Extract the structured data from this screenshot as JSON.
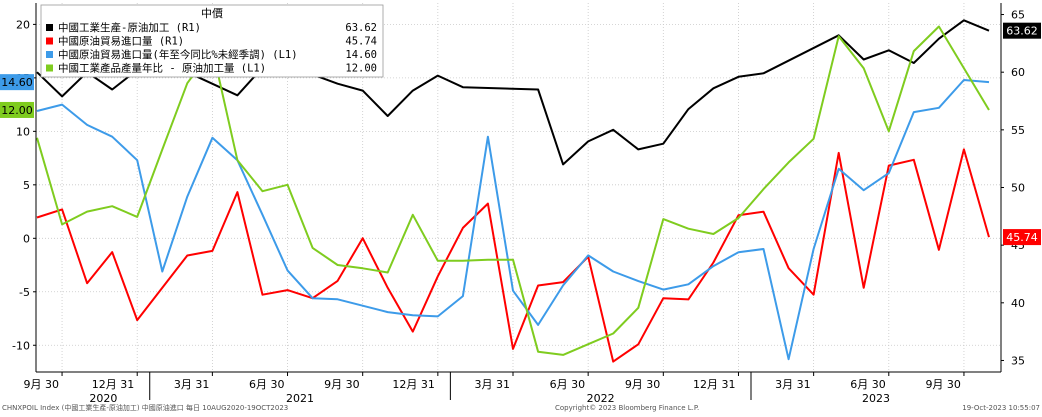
{
  "chart_data": {
    "type": "line",
    "legend": {
      "header": "中價",
      "placement": "top-left",
      "entries": [
        {
          "label": "中國工業生產-原油加工 (R1)",
          "value": "63.62",
          "color": "#000000"
        },
        {
          "label": "中國原油貿易進口量 (R1)",
          "value": "45.74",
          "color": "#ff0000"
        },
        {
          "label": "中國原油貿易進口量(年至今同比%未經季調) (L1)",
          "value": "14.60",
          "color": "#3d9be9"
        },
        {
          "label": "中國工業產品產量年比 - 原油加工量 (L1)",
          "value": "12.00",
          "color": "#7fcc1f"
        }
      ]
    },
    "x": [
      "2020-08",
      "2020-09",
      "2020-10",
      "2020-11",
      "2020-12",
      "2021-01",
      "2021-02",
      "2021-03",
      "2021-04",
      "2021-05",
      "2021-06",
      "2021-07",
      "2021-08",
      "2021-09",
      "2021-10",
      "2021-11",
      "2021-12",
      "2022-01",
      "2022-02",
      "2022-03",
      "2022-04",
      "2022-05",
      "2022-06",
      "2022-07",
      "2022-08",
      "2022-09",
      "2022-10",
      "2022-11",
      "2022-12",
      "2023-01",
      "2023-02",
      "2023-03",
      "2023-04",
      "2023-05",
      "2023-06",
      "2023-07",
      "2023-08",
      "2023-09",
      "2023-10"
    ],
    "x_tick_labels": [
      "9月 30",
      "12月 31",
      "3月 31",
      "6月 30",
      "9月 30",
      "12月 31",
      "3月 31",
      "6月 30",
      "9月 30",
      "12月 31",
      "3月 31",
      "6月 30",
      "9月 30"
    ],
    "x_year_labels": [
      "2020",
      "2021",
      "2022",
      "2023"
    ],
    "left_axis": {
      "ylim": [
        -12.5,
        22
      ],
      "ticks": [
        "20",
        "15",
        "10",
        "5",
        "0",
        "-5",
        "-10"
      ]
    },
    "right_axis": {
      "ylim": [
        34,
        66
      ],
      "ticks": [
        "65",
        "60",
        "55",
        "50",
        "45",
        "40",
        "35"
      ]
    },
    "grid": true,
    "series": [
      {
        "name": "中國工業生產-原油加工 (R1)",
        "axis": "right",
        "color": "#000000",
        "values": [
          60.0,
          57.9,
          60.0,
          58.5,
          60.2,
          null,
          60.0,
          null,
          58.0,
          60.4,
          60.6,
          null,
          59.0,
          58.4,
          56.2,
          58.4,
          59.7,
          58.7,
          null,
          null,
          58.5,
          52.0,
          54.0,
          55.0,
          53.3,
          53.8,
          56.8,
          58.6,
          59.6,
          59.9,
          null,
          null,
          63.2,
          61.1,
          61.9,
          60.8,
          62.9,
          64.5,
          63.6
        ]
      },
      {
        "name": "中國原油貿易進口量 (R1)",
        "axis": "right",
        "color": "#ff0000",
        "values": [
          47.4,
          48.1,
          41.7,
          44.4,
          38.5,
          null,
          44.1,
          44.5,
          49.6,
          40.7,
          41.1,
          40.4,
          41.9,
          45.6,
          41.3,
          37.5,
          42.3,
          46.5,
          48.6,
          36.0,
          41.5,
          41.8,
          44.0,
          34.9,
          36.4,
          40.4,
          40.3,
          43.5,
          47.6,
          47.9,
          43.0,
          40.7,
          53.0,
          41.3,
          51.9,
          52.4,
          44.6,
          53.3,
          45.7
        ]
      },
      {
        "name": "中國原油貿易進口量(年至今同比%未經季調) (L1)",
        "axis": "left",
        "color": "#3d9be9",
        "values": [
          11.9,
          12.5,
          10.6,
          9.5,
          7.3,
          -3.1,
          3.9,
          9.4,
          7.3,
          2.2,
          -3.0,
          -5.6,
          -5.7,
          null,
          -6.9,
          -7.2,
          -7.3,
          -5.4,
          9.5,
          -4.9,
          -8.1,
          -4.4,
          -1.6,
          -3.1,
          -4.0,
          -4.8,
          -4.3,
          -2.6,
          -1.3,
          -1.0,
          -11.3,
          -1.0,
          6.5,
          4.5,
          6.1,
          11.8,
          12.2,
          14.8,
          14.6
        ]
      },
      {
        "name": "中國工業產品產量年比 - 原油加工量 (L1)",
        "axis": "left",
        "color": "#7fcc1f",
        "values": [
          9.4,
          1.3,
          2.5,
          3.0,
          2.0,
          8.3,
          14.5,
          17.7,
          7.3,
          4.4,
          5.0,
          -0.9,
          -2.5,
          -2.8,
          -3.2,
          2.2,
          -2.1,
          -2.1,
          -2.0,
          -2.0,
          -10.6,
          -10.9,
          -9.9,
          -8.9,
          -6.5,
          1.8,
          0.9,
          0.4,
          1.9,
          4.6,
          7.1,
          9.3,
          18.9,
          15.9,
          10.0,
          17.5,
          19.8,
          null,
          12.0
        ]
      }
    ]
  },
  "footer": {
    "left": "CHNXPOIL Index (中國工業生產-原油加工) 中國原油進口  每日 10AUG2020-19OCT2023",
    "center": "Copyright© 2023 Bloomberg Finance L.P.",
    "right": "19-Oct-2023 10:55:07"
  }
}
